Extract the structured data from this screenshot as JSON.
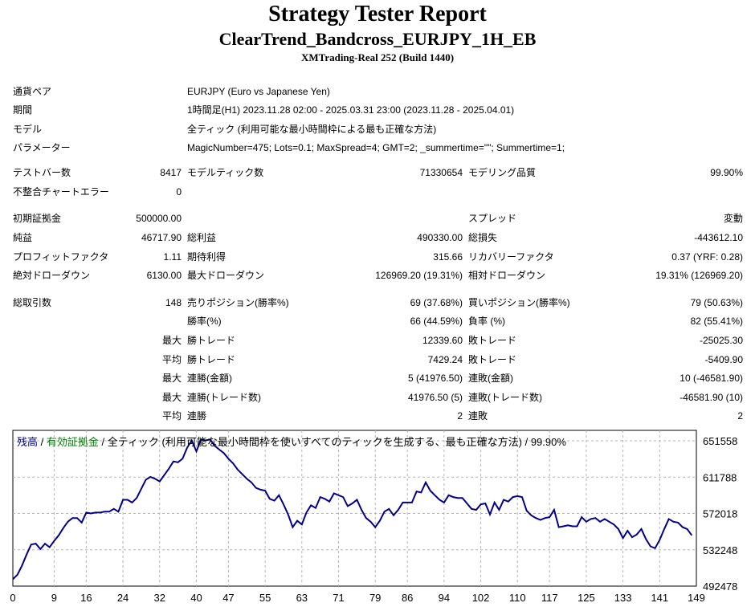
{
  "report": {
    "title": "Strategy Tester Report",
    "subtitle": "ClearTrend_Bandcross_EURJPY_1H_EB",
    "build": "XMTrading-Real 252 (Build 1440)"
  },
  "info": [
    {
      "label": "通貨ペア",
      "value": "EURJPY (Euro vs Japanese Yen)"
    },
    {
      "label": "期間",
      "value": "1時間足(H1) 2023.11.28 02:00 - 2025.03.31 23:00 (2023.11.28 - 2025.04.01)"
    },
    {
      "label": "モデル",
      "value": "全ティック (利用可能な最小時間枠による最も正確な方法)"
    },
    {
      "label": "パラメーター",
      "value": "MagicNumber=475; Lots=0.1; MaxSpread=4; GMT=2; _summertime=\"\"; Summertime=1;"
    }
  ],
  "stats": {
    "test_bars_label": "テストバー数",
    "test_bars": "8417",
    "model_ticks_label": "モデルティック数",
    "model_ticks": "71330654",
    "model_quality_label": "モデリング品質",
    "model_quality": "99.90%",
    "mismatch_label": "不整合チャートエラー",
    "mismatch": "0",
    "initial_deposit_label": "初期証拠金",
    "initial_deposit": "500000.00",
    "spread_label": "スプレッド",
    "spread": "変動",
    "net_profit_label": "純益",
    "net_profit": "46717.90",
    "gross_profit_label": "総利益",
    "gross_profit": "490330.00",
    "gross_loss_label": "総損失",
    "gross_loss": "-443612.10",
    "profit_factor_label": "プロフィットファクタ",
    "profit_factor": "1.11",
    "expected_payoff_label": "期待利得",
    "expected_payoff": "315.66",
    "recovery_factor_label": "リカバリーファクタ",
    "recovery_factor": "0.37 (YRF: 0.28)",
    "abs_dd_label": "絶対ドローダウン",
    "abs_dd": "6130.00",
    "max_dd_label": "最大ドローダウン",
    "max_dd": "126969.20 (19.31%)",
    "rel_dd_label": "相対ドローダウン",
    "rel_dd": "19.31% (126969.20)",
    "total_trades_label": "総取引数",
    "total_trades": "148",
    "short_label": "売りポジション(勝率%)",
    "short": "69 (37.68%)",
    "long_label": "買いポジション(勝率%)",
    "long": "79 (50.63%)",
    "winrate_label": "勝率(%)",
    "winrate": "66 (44.59%)",
    "lossrate_label": "負率 (%)",
    "lossrate": "82 (55.41%)",
    "max_label": "最大",
    "avg_label": "平均",
    "largest_win_label": "勝トレード",
    "largest_win": "12339.60",
    "largest_loss_label": "敗トレード",
    "largest_loss": "-25025.30",
    "avg_win_label": "勝トレード",
    "avg_win": "7429.24",
    "avg_loss_label": "敗トレード",
    "avg_loss": "-5409.90",
    "max_cons_wins_label": "連勝(金額)",
    "max_cons_wins": "5 (41976.50)",
    "max_cons_losses_label": "連敗(金額)",
    "max_cons_losses": "10 (-46581.90)",
    "max_cons_profit_label": "連勝(トレード数)",
    "max_cons_profit": "41976.50 (5)",
    "max_cons_loss_label": "連敗(トレード数)",
    "max_cons_loss": "-46581.90 (10)",
    "avg_cons_wins_label": "連勝",
    "avg_cons_wins": "2",
    "avg_cons_losses_label": "連敗",
    "avg_cons_losses": "2"
  },
  "legend": {
    "balance": "残高",
    "sep": " / ",
    "equity": "有効証拠金",
    "rest": " / 全ティック (利用可能な最小時間枠を使いすべてのティックを生成する、最も正確な方法) / 99.90%"
  },
  "colors": {
    "balance": "#00008b",
    "equity": "#008000",
    "grid": "#b4b4b4"
  },
  "chart_data": {
    "type": "line",
    "series": [
      {
        "name": "残高",
        "x": [
          0,
          1,
          2,
          3,
          4,
          5,
          6,
          7,
          8,
          9,
          10,
          11,
          12,
          13,
          14,
          15,
          16,
          17,
          18,
          19,
          20,
          21,
          22,
          23,
          24,
          25,
          26,
          27,
          28,
          29,
          30,
          31,
          32,
          33,
          34,
          35,
          36,
          37,
          38,
          39,
          40,
          41,
          42,
          43,
          44,
          45,
          46,
          47,
          48,
          49,
          50,
          51,
          52,
          53,
          54,
          55,
          56,
          57,
          58,
          59,
          60,
          61,
          62,
          63,
          64,
          65,
          66,
          67,
          68,
          69,
          70,
          71,
          72,
          73,
          74,
          75,
          76,
          77,
          78,
          79,
          80,
          81,
          82,
          83,
          84,
          85,
          86,
          87,
          88,
          89,
          90,
          91,
          92,
          93,
          94,
          95,
          96,
          97,
          98,
          99,
          100,
          101,
          102,
          103,
          104,
          105,
          106,
          107,
          108,
          109,
          110,
          111,
          112,
          113,
          114,
          115,
          116,
          117,
          118,
          119,
          120,
          121,
          122,
          123,
          124,
          125,
          126,
          127,
          128,
          129,
          130,
          131,
          132,
          133,
          134,
          135,
          136,
          137,
          138,
          139,
          140,
          141,
          142,
          143,
          144,
          145,
          146,
          147,
          148
        ],
        "y": [
          500000,
          505000,
          515000,
          527000,
          538000,
          539000,
          533000,
          539000,
          535000,
          542000,
          548000,
          556000,
          563000,
          567000,
          567000,
          562000,
          573000,
          572000,
          573000,
          573000,
          574000,
          574000,
          577000,
          574000,
          587000,
          587000,
          584000,
          589000,
          599000,
          609000,
          612000,
          610000,
          607000,
          614000,
          621000,
          629000,
          628000,
          632000,
          644000,
          652000,
          640000,
          653000,
          652000,
          653000,
          646000,
          642000,
          638000,
          632000,
          627000,
          620000,
          615000,
          610000,
          606000,
          600000,
          598000,
          597000,
          588000,
          586000,
          592000,
          582000,
          571000,
          557000,
          564000,
          560000,
          573000,
          581000,
          578000,
          590000,
          588000,
          585000,
          594000,
          592000,
          590000,
          580000,
          583000,
          587000,
          576000,
          567000,
          563000,
          557000,
          564000,
          574000,
          577000,
          570000,
          576000,
          584000,
          584000,
          584000,
          596000,
          595000,
          606000,
          597000,
          592000,
          587000,
          584000,
          592000,
          590000,
          589000,
          589000,
          583000,
          577000,
          576000,
          582000,
          583000,
          571000,
          584000,
          576000,
          587000,
          585000,
          590000,
          591000,
          590000,
          575000,
          570000,
          567000,
          565000,
          567000,
          568000,
          576000,
          557000,
          558000,
          559000,
          558000,
          558000,
          568000,
          563000,
          566000,
          567000,
          563000,
          566000,
          563000,
          560000,
          555000,
          545000,
          553000,
          546000,
          549000,
          555000,
          544000,
          536000,
          534000,
          543000,
          555000,
          566000,
          563000,
          562000,
          557000,
          555000,
          548000
        ]
      }
    ],
    "xticks": [
      0,
      9,
      16,
      24,
      32,
      40,
      47,
      55,
      63,
      71,
      79,
      86,
      94,
      102,
      110,
      117,
      125,
      133,
      141,
      149
    ],
    "yticks": [
      492478,
      532248,
      572018,
      611788,
      651558
    ],
    "xlim": [
      0,
      149
    ],
    "ylim": [
      492478,
      663000
    ],
    "grid": true
  }
}
